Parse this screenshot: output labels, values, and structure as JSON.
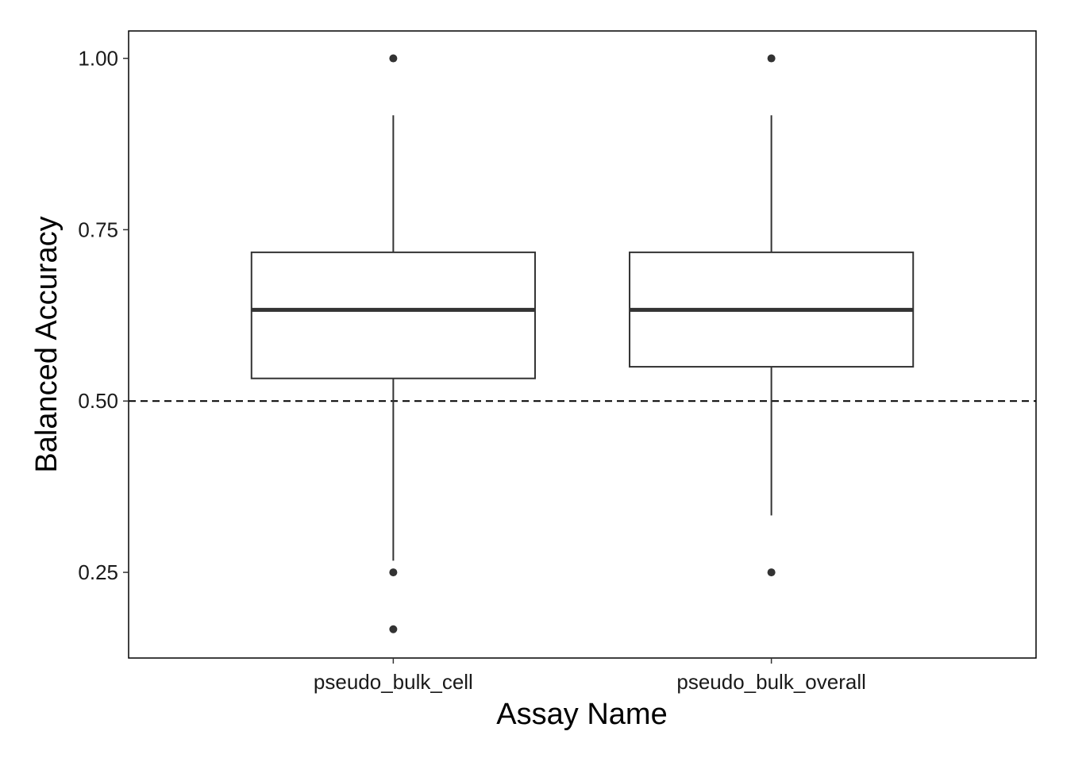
{
  "chart_data": {
    "type": "boxplot",
    "xlabel": "Assay Name",
    "ylabel": "Balanced Accuracy",
    "categories": [
      "pseudo_bulk_cell",
      "pseudo_bulk_overall"
    ],
    "ylim": [
      0.125,
      1.04
    ],
    "yticks": [
      0.25,
      0.5,
      0.75,
      1.0
    ],
    "yticklabels": [
      "0.25",
      "0.50",
      "0.75",
      "1.00"
    ],
    "grid": false,
    "reference_line": {
      "y": 0.5,
      "style": "dashed"
    },
    "boxes": [
      {
        "category": "pseudo_bulk_cell",
        "whisker_low": 0.267,
        "q1": 0.533,
        "median": 0.633,
        "q3": 0.717,
        "whisker_high": 0.917,
        "outliers": [
          1.0,
          0.25,
          0.167
        ]
      },
      {
        "category": "pseudo_bulk_overall",
        "whisker_low": 0.333,
        "q1": 0.55,
        "median": 0.633,
        "q3": 0.717,
        "whisker_high": 0.917,
        "outliers": [
          1.0,
          0.25
        ]
      }
    ],
    "colors": {
      "box_stroke": "#333333",
      "box_fill": "#ffffff",
      "outlier": "#333333",
      "reference_line": "#000000",
      "panel_border": "#000000"
    }
  }
}
